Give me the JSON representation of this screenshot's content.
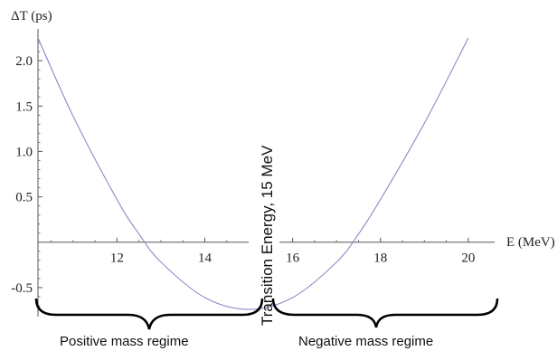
{
  "chart_data": {
    "type": "line",
    "xlabel": "E (MeV)",
    "ylabel": "ΔT (ps)",
    "xlim": [
      10.2,
      20.6
    ],
    "ylim": [
      -0.82,
      2.35
    ],
    "x_axis_crossing_y": 0,
    "x_ticks": [
      12,
      14,
      16,
      18,
      20
    ],
    "y_ticks": [
      -0.5,
      0.5,
      1.0,
      1.5,
      2.0
    ],
    "x_tick_labels": [
      "12",
      "14",
      "16",
      "18",
      "20"
    ],
    "y_tick_labels": [
      "-0.5",
      "0.5",
      "1.0",
      "1.5",
      "2.0"
    ],
    "series": [
      {
        "color": "#7f7fbf",
        "x": [
          10.2,
          11.0,
          12.0,
          12.5,
          13.0,
          14.0,
          15.0,
          16.0,
          17.0,
          17.5,
          18.0,
          19.0,
          20.0
        ],
        "y": [
          2.25,
          1.39,
          0.47,
          0.09,
          -0.22,
          -0.61,
          -0.74,
          -0.61,
          -0.22,
          0.09,
          0.47,
          1.31,
          2.25
        ]
      }
    ],
    "annotations": {
      "transition": "Transition Energy, 15 MeV",
      "positive_regime": "Positive mass regime",
      "negative_regime": "Negative mass regime"
    }
  }
}
